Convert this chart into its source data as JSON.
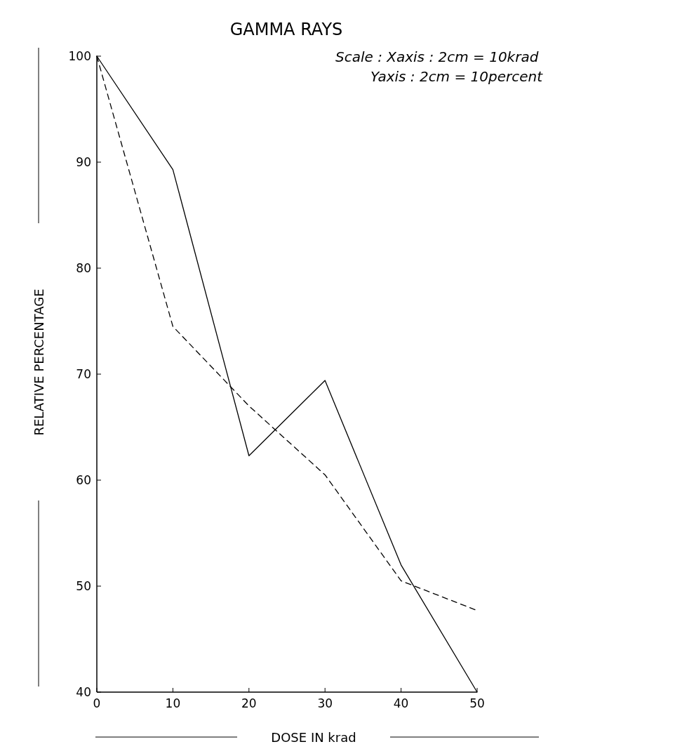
{
  "chart_data": {
    "type": "line",
    "title": "GAMMA RAYS",
    "xlabel": "DOSE IN krad",
    "ylabel": "RELATIVE PERCENTAGE",
    "annotations": [
      "Scale : Xaxis : 2cm = 10krad",
      "Yaxis : 2cm = 10percent"
    ],
    "x": [
      0,
      10,
      20,
      30,
      40,
      50
    ],
    "series": [
      {
        "color": "#000000",
        "line_style": "solid",
        "values": [
          100,
          89.3,
          62.3,
          69.4,
          52,
          40
        ]
      },
      {
        "color": "#000000",
        "line_style": "dashed",
        "values": [
          100,
          74.5,
          67,
          60.5,
          50.5,
          47.7
        ]
      }
    ],
    "xlim": [
      0,
      50
    ],
    "ylim": [
      40,
      100
    ],
    "xticks": [
      0,
      10,
      20,
      30,
      40,
      50
    ],
    "yticks": [
      40,
      50,
      60,
      70,
      80,
      90,
      100
    ],
    "grid": false,
    "marker": "none"
  }
}
